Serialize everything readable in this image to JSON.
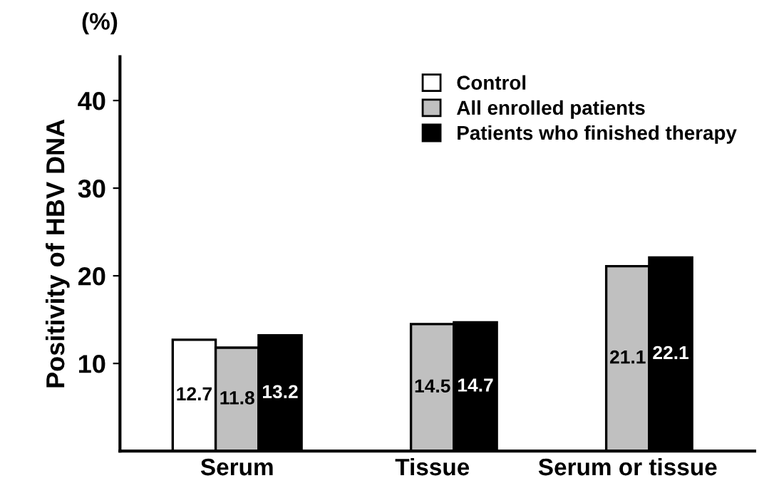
{
  "chart_data": {
    "type": "bar",
    "ylabel": "Positivity of HBV DNA",
    "annotations": [
      "(%)"
    ],
    "categories": [
      "Serum",
      "Tissue",
      "Serum or tissue"
    ],
    "series": [
      {
        "name": "Control",
        "color": "#ffffff",
        "values": [
          12.7,
          null,
          null
        ]
      },
      {
        "name": "All enrolled patients",
        "color": "#c0c0c0",
        "values": [
          11.8,
          14.5,
          21.1
        ]
      },
      {
        "name": "Patients who finished therapy",
        "color": "#000000",
        "values": [
          13.2,
          14.7,
          22.1
        ]
      }
    ],
    "ylim": [
      0,
      45
    ],
    "yticks": [
      10,
      20,
      30,
      40
    ],
    "data_labels": true,
    "legend": "top right",
    "grid": false
  }
}
